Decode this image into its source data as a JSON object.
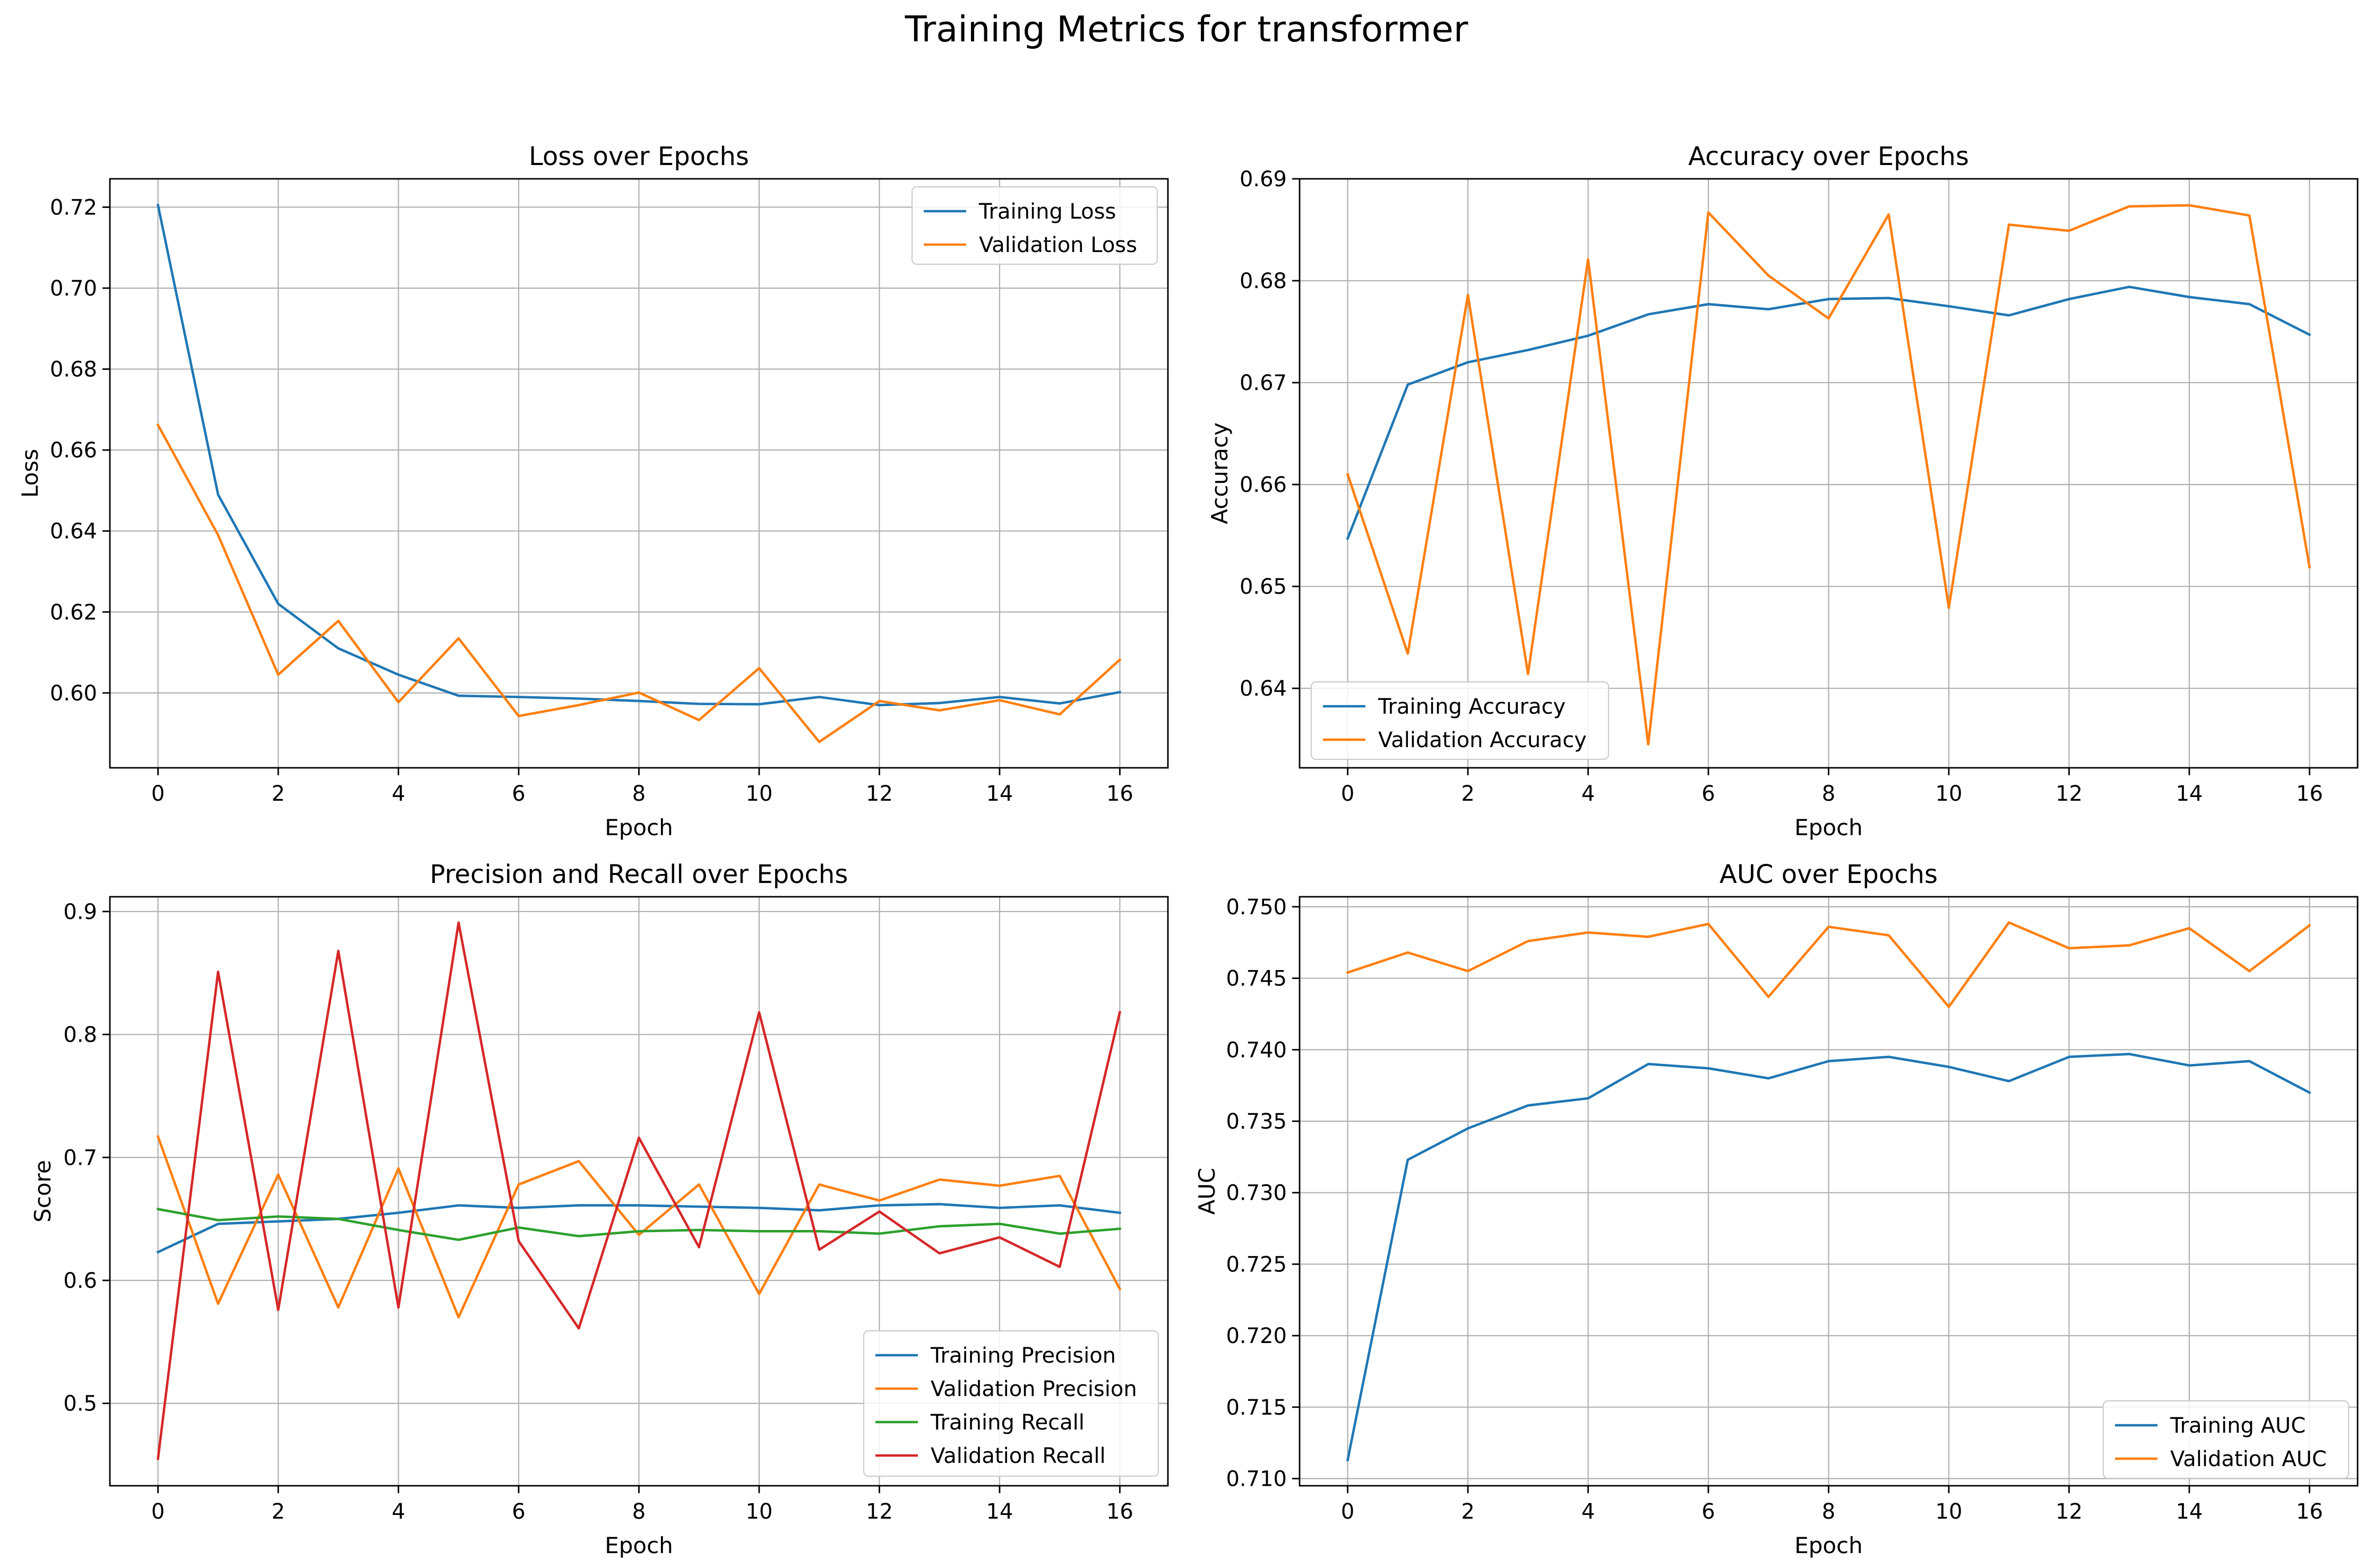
{
  "figure": {
    "title": "Training Metrics for transformer"
  },
  "colors": {
    "blue": "#1f77b4",
    "orange": "#ff7f0e",
    "green": "#2ca02c",
    "red": "#d62728",
    "grid": "#b0b0b0"
  },
  "chart_data": [
    {
      "type": "line",
      "title": "Loss over Epochs",
      "xlabel": "Epoch",
      "ylabel": "Loss",
      "x": [
        0,
        1,
        2,
        3,
        4,
        5,
        6,
        7,
        8,
        9,
        10,
        11,
        12,
        13,
        14,
        15,
        16
      ],
      "xlim": [
        -0.8,
        16.8
      ],
      "ylim": [
        0.5815,
        0.727
      ],
      "xticks": [
        0,
        2,
        4,
        6,
        8,
        10,
        12,
        14,
        16
      ],
      "yticks": [
        0.6,
        0.62,
        0.64,
        0.66,
        0.68,
        0.7,
        0.72
      ],
      "ytick_labels": [
        "0.60",
        "0.62",
        "0.64",
        "0.66",
        "0.68",
        "0.70",
        "0.72"
      ],
      "grid": true,
      "legend": "upper-right",
      "series": [
        {
          "name": "Training Loss",
          "color": "#1f77b4",
          "values": [
            0.7205,
            0.649,
            0.622,
            0.611,
            0.6045,
            0.5993,
            0.599,
            0.5986,
            0.598,
            0.5973,
            0.5972,
            0.599,
            0.597,
            0.5975,
            0.599,
            0.5974,
            0.6002
          ]
        },
        {
          "name": "Validation Loss",
          "color": "#ff7f0e",
          "values": [
            0.6662,
            0.639,
            0.6045,
            0.6178,
            0.5977,
            0.6135,
            0.5943,
            0.597,
            0.6001,
            0.5933,
            0.6061,
            0.5879,
            0.598,
            0.5957,
            0.5982,
            0.5947,
            0.6082
          ]
        }
      ]
    },
    {
      "type": "line",
      "title": "Accuracy over Epochs",
      "xlabel": "Epoch",
      "ylabel": "Accuracy",
      "x": [
        0,
        1,
        2,
        3,
        4,
        5,
        6,
        7,
        8,
        9,
        10,
        11,
        12,
        13,
        14,
        15,
        16
      ],
      "xlim": [
        -0.8,
        16.8
      ],
      "ylim": [
        0.6322,
        0.69
      ],
      "xticks": [
        0,
        2,
        4,
        6,
        8,
        10,
        12,
        14,
        16
      ],
      "yticks": [
        0.64,
        0.65,
        0.66,
        0.67,
        0.68,
        0.69
      ],
      "ytick_labels": [
        "0.64",
        "0.65",
        "0.66",
        "0.67",
        "0.68",
        "0.69"
      ],
      "grid": true,
      "legend": "lower-left",
      "series": [
        {
          "name": "Training Accuracy",
          "color": "#1f77b4",
          "values": [
            0.6547,
            0.6698,
            0.672,
            0.6732,
            0.6746,
            0.6767,
            0.6777,
            0.6772,
            0.6782,
            0.6783,
            0.6775,
            0.6766,
            0.6782,
            0.6794,
            0.6784,
            0.6777,
            0.6747
          ]
        },
        {
          "name": "Validation Accuracy",
          "color": "#ff7f0e",
          "values": [
            0.661,
            0.6434,
            0.6786,
            0.6414,
            0.6821,
            0.6345,
            0.6867,
            0.6805,
            0.6763,
            0.6865,
            0.6479,
            0.6855,
            0.6849,
            0.6873,
            0.6874,
            0.6864,
            0.6519
          ]
        }
      ]
    },
    {
      "type": "line",
      "title": "Precision and Recall over Epochs",
      "xlabel": "Epoch",
      "ylabel": "Score",
      "x": [
        0,
        1,
        2,
        3,
        4,
        5,
        6,
        7,
        8,
        9,
        10,
        11,
        12,
        13,
        14,
        15,
        16
      ],
      "xlim": [
        -0.8,
        16.8
      ],
      "ylim": [
        0.433,
        0.912
      ],
      "xticks": [
        0,
        2,
        4,
        6,
        8,
        10,
        12,
        14,
        16
      ],
      "yticks": [
        0.5,
        0.6,
        0.7,
        0.8,
        0.9
      ],
      "ytick_labels": [
        "0.5",
        "0.6",
        "0.7",
        "0.8",
        "0.9"
      ],
      "grid": true,
      "legend": "lower-right",
      "series": [
        {
          "name": "Training Precision",
          "color": "#1f77b4",
          "values": [
            0.623,
            0.646,
            0.648,
            0.65,
            0.655,
            0.661,
            0.659,
            0.661,
            0.661,
            0.66,
            0.659,
            0.657,
            0.661,
            0.662,
            0.659,
            0.661,
            0.655
          ]
        },
        {
          "name": "Validation Precision",
          "color": "#ff7f0e",
          "values": [
            0.717,
            0.581,
            0.686,
            0.578,
            0.691,
            0.57,
            0.678,
            0.697,
            0.637,
            0.678,
            0.589,
            0.678,
            0.665,
            0.682,
            0.677,
            0.685,
            0.593
          ]
        },
        {
          "name": "Training Recall",
          "color": "#2ca02c",
          "values": [
            0.658,
            0.649,
            0.652,
            0.65,
            0.641,
            0.633,
            0.643,
            0.636,
            0.64,
            0.641,
            0.64,
            0.64,
            0.638,
            0.644,
            0.646,
            0.638,
            0.642
          ]
        },
        {
          "name": "Validation Recall",
          "color": "#d62728",
          "values": [
            0.455,
            0.851,
            0.576,
            0.868,
            0.578,
            0.891,
            0.632,
            0.561,
            0.716,
            0.627,
            0.818,
            0.625,
            0.656,
            0.622,
            0.635,
            0.611,
            0.818
          ]
        }
      ]
    },
    {
      "type": "line",
      "title": "AUC over Epochs",
      "xlabel": "Epoch",
      "ylabel": "AUC",
      "x": [
        0,
        1,
        2,
        3,
        4,
        5,
        6,
        7,
        8,
        9,
        10,
        11,
        12,
        13,
        14,
        15,
        16
      ],
      "xlim": [
        -0.8,
        16.8
      ],
      "ylim": [
        0.7095,
        0.7507
      ],
      "xticks": [
        0,
        2,
        4,
        6,
        8,
        10,
        12,
        14,
        16
      ],
      "yticks": [
        0.71,
        0.715,
        0.72,
        0.725,
        0.73,
        0.735,
        0.74,
        0.745,
        0.75
      ],
      "ytick_labels": [
        "0.710",
        "0.715",
        "0.720",
        "0.725",
        "0.730",
        "0.735",
        "0.740",
        "0.745",
        "0.750"
      ],
      "grid": true,
      "legend": "lower-right",
      "series": [
        {
          "name": "Training AUC",
          "color": "#1f77b4",
          "values": [
            0.7113,
            0.7323,
            0.7345,
            0.7361,
            0.7366,
            0.739,
            0.7387,
            0.738,
            0.7392,
            0.7395,
            0.7388,
            0.7378,
            0.7395,
            0.7397,
            0.7389,
            0.7392,
            0.737
          ]
        },
        {
          "name": "Validation AUC",
          "color": "#ff7f0e",
          "values": [
            0.7454,
            0.7468,
            0.7455,
            0.7476,
            0.7482,
            0.7479,
            0.7488,
            0.7437,
            0.7486,
            0.748,
            0.743,
            0.7489,
            0.7471,
            0.7473,
            0.7485,
            0.7455,
            0.7487
          ]
        }
      ]
    }
  ]
}
